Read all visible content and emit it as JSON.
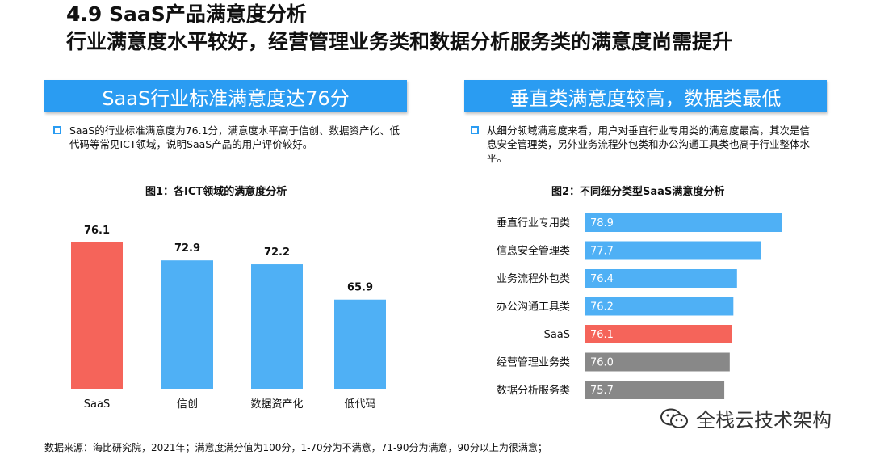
{
  "header": {
    "title": "4.9 SaaS产品满意度分析",
    "subtitle": "行业满意度水平较好，经营管理业务类和数据分析服务类的满意度尚需提升"
  },
  "left_panel": {
    "banner": "SaaS行业标准满意度达76分",
    "bullet": "SaaS的行业标准满意度为76.1分，满意度水平高于信创、数据资产化、低代码等常见ICT领域，说明SaaS产品的用户评价较好。"
  },
  "right_panel": {
    "banner": "垂直类满意度较高，数据类最低",
    "bullet": "从细分领域满意度来看，用户对垂直行业专用类的满意度最高，其次是信息安全管理类，另外业务流程外包类和办公沟通工具类也高于行业整体水平。"
  },
  "source": "数据来源：海比研究院，2021年；满意度满分值为100分，1-70分为不满意，71-90分为满意，90分以上为很满意；",
  "watermark": "全栈云技术架构",
  "colors": {
    "accent_blue": "#2a9cf2",
    "bar_blue": "#4fb0f5",
    "highlight_red": "#f5645a",
    "gray": "#888888"
  },
  "chart_data": [
    {
      "type": "bar",
      "title": "图1：各ICT领域的满意度分析",
      "categories": [
        "SaaS",
        "信创",
        "数据资产化",
        "低代码"
      ],
      "values": [
        76.1,
        72.9,
        72.2,
        65.9
      ],
      "value_labels": [
        "76.1",
        "72.9",
        "72.2",
        "65.9"
      ],
      "colors": [
        "#f5645a",
        "#4fb0f5",
        "#4fb0f5",
        "#4fb0f5"
      ],
      "grid": false
    },
    {
      "type": "bar",
      "orientation": "horizontal",
      "title": "图2：不同细分类型SaaS满意度分析",
      "categories": [
        "垂直行业专用类",
        "信息安全管理类",
        "业务流程外包类",
        "办公沟通工具类",
        "SaaS",
        "经营管理业务类",
        "数据分析服务类"
      ],
      "values": [
        78.9,
        77.7,
        76.4,
        76.2,
        76.1,
        76.0,
        75.7
      ],
      "value_labels": [
        "78.9",
        "77.7",
        "76.4",
        "76.2",
        "76.1",
        "76.0",
        "75.7"
      ],
      "colors": [
        "#4fb0f5",
        "#4fb0f5",
        "#4fb0f5",
        "#4fb0f5",
        "#f5645a",
        "#888888",
        "#888888"
      ],
      "grid": false
    }
  ]
}
